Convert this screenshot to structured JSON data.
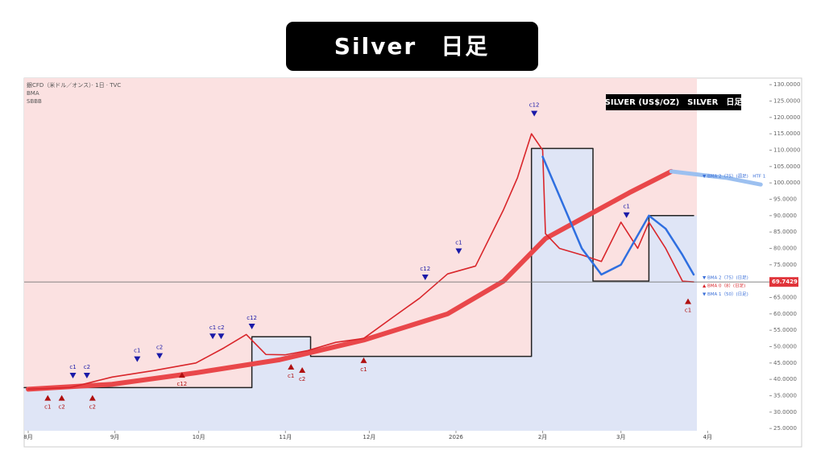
{
  "chart_data": {
    "type": "line",
    "title": "Silver　日足",
    "header": [
      "銀CFD（米ドル／オンス）· 1日 · TVC",
      "BMA",
      "SBBB"
    ],
    "box_label": "SILVER (US$/OZ)　SILVER　日足",
    "xlim": [
      -1.44,
      265.1
    ],
    "xticks": [
      {
        "value": 0,
        "label": "8月"
      },
      {
        "value": 31,
        "label": "9月"
      },
      {
        "value": 61,
        "label": "10月"
      },
      {
        "value": 92,
        "label": "11月"
      },
      {
        "value": 122,
        "label": "12月"
      },
      {
        "value": 153,
        "label": "2026"
      },
      {
        "value": 184,
        "label": "2月"
      },
      {
        "value": 212,
        "label": "3月"
      },
      {
        "value": 243,
        "label": "4月"
      }
    ],
    "ylim": [
      24.3,
      132
    ],
    "yticks": [
      {
        "value": 130,
        "label": "130.0000"
      },
      {
        "value": 125,
        "label": "125.0000"
      },
      {
        "value": 120,
        "label": "120.0000"
      },
      {
        "value": 115,
        "label": "115.0000"
      },
      {
        "value": 110,
        "label": "110.0000"
      },
      {
        "value": 105,
        "label": "105.0000"
      },
      {
        "value": 100,
        "label": "100.0000"
      },
      {
        "value": 95,
        "label": "95.0000"
      },
      {
        "value": 90,
        "label": "90.0000"
      },
      {
        "value": 85,
        "label": "85.0000"
      },
      {
        "value": 80,
        "label": "80.0000"
      },
      {
        "value": 75,
        "label": "75.0000"
      },
      {
        "value": 70,
        "label": "70.0000"
      },
      {
        "value": 65,
        "label": "65.0000"
      },
      {
        "value": 60,
        "label": "60.0000"
      },
      {
        "value": 55,
        "label": "55.0000"
      },
      {
        "value": 50,
        "label": "50.0000"
      },
      {
        "value": 45,
        "label": "45.0000"
      },
      {
        "value": 40,
        "label": "40.0000"
      },
      {
        "value": 35,
        "label": "35.0000"
      },
      {
        "value": 30,
        "label": "30.0000"
      },
      {
        "value": 25,
        "label": "25.0000"
      }
    ],
    "series": [
      {
        "color": "#222222",
        "width": 1.5,
        "step": true,
        "x": [
          -1.44,
          80,
          80,
          101,
          101,
          180,
          180,
          202,
          202,
          222,
          222,
          238
        ],
        "values": [
          37.5,
          37.5,
          53,
          53,
          47,
          47,
          110.5,
          110.5,
          70,
          70,
          90,
          90
        ]
      },
      {
        "color": "#e9474a",
        "width": 6,
        "x": [
          0,
          30,
          60,
          90,
          120,
          150,
          170,
          185,
          200,
          215,
          230
        ],
        "values": [
          37,
          38.5,
          42,
          46,
          52,
          60,
          70,
          83,
          90,
          97,
          103.5
        ]
      },
      {
        "color": "#9cc0f0",
        "width": 5,
        "x": [
          230,
          250,
          262
        ],
        "values": [
          103.5,
          101.5,
          99.5
        ]
      },
      {
        "color": "#d9262b",
        "width": 1.6,
        "x": [
          0,
          15,
          30,
          45,
          60,
          70,
          78,
          85,
          92,
          100,
          110,
          120,
          130,
          140,
          150,
          160,
          170,
          175,
          180,
          184,
          185,
          190,
          198,
          205,
          212,
          218,
          222,
          228,
          234,
          238
        ],
        "values": [
          37,
          37.5,
          40.7,
          42.7,
          45,
          49.6,
          53.7,
          47.6,
          47.5,
          48.8,
          51.3,
          52.5,
          58.7,
          64.8,
          72.2,
          74.6,
          91.8,
          101.6,
          115,
          110,
          84.5,
          80,
          78,
          76,
          88,
          80,
          88,
          80,
          70,
          69.7429
        ]
      },
      {
        "color": "#2f6fe0",
        "width": 2.5,
        "x": [
          184,
          190,
          198,
          205,
          212,
          222,
          228,
          234,
          238
        ],
        "values": [
          108,
          96,
          80,
          72,
          75,
          90,
          86,
          78,
          72
        ]
      }
    ],
    "current_price": 69.7429,
    "right_labels": [
      {
        "text": "▼ BMA 2（75）(週足)　HTF 1",
        "value": 102,
        "color": "#3a6fd8"
      },
      {
        "text": "▼ BMA 2（75）(日足)",
        "value": 71,
        "color": "#3a6fd8"
      },
      {
        "text": "▲ BMA 0（8）(日足)",
        "value": 68.5,
        "color": "#d9262b"
      },
      {
        "text": "▼ BMA 1（50）(日足)",
        "value": 66,
        "color": "#3a6fd8"
      }
    ],
    "annotations": [
      {
        "text": "c1",
        "x": 7,
        "value": 33.5,
        "color": "#b01010",
        "up": true
      },
      {
        "text": "c2",
        "x": 12,
        "value": 33.5,
        "color": "#b01010",
        "up": true
      },
      {
        "text": "c1",
        "x": 16,
        "value": 42,
        "color": "#1a1aa8",
        "up": false
      },
      {
        "text": "c2",
        "x": 21,
        "value": 42,
        "color": "#1a1aa8",
        "up": false
      },
      {
        "text": "c2",
        "x": 23,
        "value": 33.5,
        "color": "#b01010",
        "up": true
      },
      {
        "text": "c1",
        "x": 39,
        "value": 47,
        "color": "#1a1aa8",
        "up": false
      },
      {
        "text": "c2",
        "x": 47,
        "value": 48,
        "color": "#1a1aa8",
        "up": false
      },
      {
        "text": "c12",
        "x": 55,
        "value": 40.5,
        "color": "#b01010",
        "up": true
      },
      {
        "text": "c1",
        "x": 66,
        "value": 54,
        "color": "#1a1aa8",
        "up": false
      },
      {
        "text": "c2",
        "x": 69,
        "value": 54,
        "color": "#1a1aa8",
        "up": false
      },
      {
        "text": "c12",
        "x": 80,
        "value": 57,
        "color": "#1a1aa8",
        "up": false
      },
      {
        "text": "c1",
        "x": 94,
        "value": 43,
        "color": "#b01010",
        "up": true
      },
      {
        "text": "c2",
        "x": 98,
        "value": 42,
        "color": "#b01010",
        "up": true
      },
      {
        "text": "c1",
        "x": 120,
        "value": 45,
        "color": "#b01010",
        "up": true
      },
      {
        "text": "c12",
        "x": 142,
        "value": 72,
        "color": "#1a1aa8",
        "up": false
      },
      {
        "text": "c1",
        "x": 154,
        "value": 80,
        "color": "#1a1aa8",
        "up": false
      },
      {
        "text": "c12",
        "x": 181,
        "value": 122,
        "color": "#1a1aa8",
        "up": false
      },
      {
        "text": "c1",
        "x": 214,
        "value": 91,
        "color": "#1a1aa8",
        "up": false
      },
      {
        "text": "c1",
        "x": 236,
        "value": 63,
        "color": "#b01010",
        "up": true
      }
    ]
  }
}
